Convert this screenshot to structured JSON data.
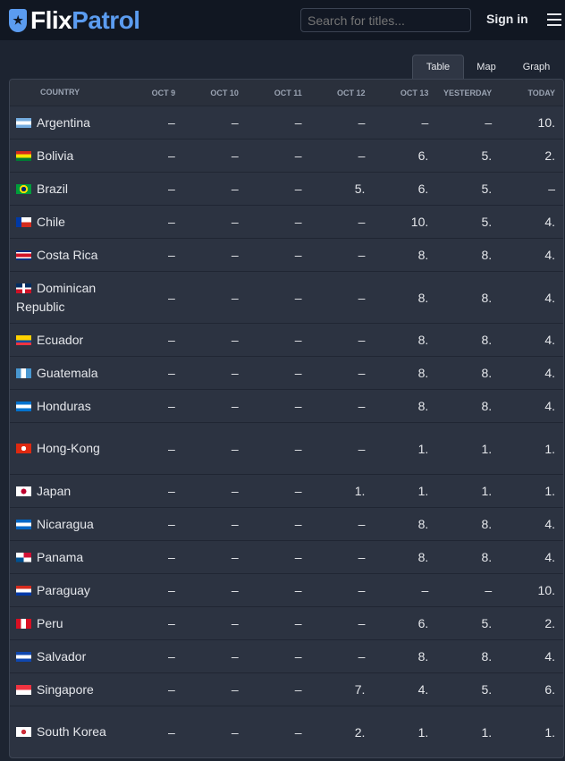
{
  "header": {
    "brand_a": "Flix",
    "brand_b": "Patrol",
    "search_placeholder": "Search for titles...",
    "signin": "Sign in"
  },
  "tabs": [
    "Table",
    "Map",
    "Graph"
  ],
  "columns": [
    "COUNTRY",
    "OCT 9",
    "OCT 10",
    "OCT 11",
    "OCT 12",
    "OCT 13",
    "YESTERDAY",
    "TODAY"
  ],
  "rows": [
    {
      "country": "Argentina",
      "flag": "linear-gradient(#74acdf 33%,#fff 33% 66%,#74acdf 66%)",
      "values": [
        "–",
        "–",
        "–",
        "–",
        "–",
        "–",
        "10."
      ]
    },
    {
      "country": "Bolivia",
      "flag": "linear-gradient(#d52b1e 33%,#f9e300 33% 66%,#007934 66%)",
      "values": [
        "–",
        "–",
        "–",
        "–",
        "6.",
        "5.",
        "2."
      ]
    },
    {
      "country": "Brazil",
      "flag": "radial-gradient(circle,#002776 25%,#fedf00 26% 45%,#009c3b 46%)",
      "values": [
        "–",
        "–",
        "–",
        "5.",
        "6.",
        "5.",
        "–"
      ]
    },
    {
      "country": "Chile",
      "flag": "linear-gradient(90deg,#0039a6 35%,transparent 35%),linear-gradient(#fff 50%,#d52b1e 50%)",
      "values": [
        "–",
        "–",
        "–",
        "–",
        "10.",
        "5.",
        "4."
      ]
    },
    {
      "country": "Costa Rica",
      "flag": "linear-gradient(#002b7f 18%,#fff 18% 33%,#ce1126 33% 66%,#fff 66% 82%,#002b7f 82%)",
      "values": [
        "–",
        "–",
        "–",
        "–",
        "8.",
        "8.",
        "4."
      ]
    },
    {
      "country": "Dominican Republic",
      "flag": "linear-gradient(90deg,transparent 42%,#fff 42% 58%,transparent 58%),linear-gradient(#002d62 42%,#fff 42% 58%,#ce1126 58%)",
      "values": [
        "–",
        "–",
        "–",
        "–",
        "8.",
        "8.",
        "4."
      ]
    },
    {
      "country": "Ecuador",
      "flag": "linear-gradient(#ffd100 50%,#034ea2 50% 75%,#ef3340 75%)",
      "values": [
        "–",
        "–",
        "–",
        "–",
        "8.",
        "8.",
        "4."
      ]
    },
    {
      "country": "Guatemala",
      "flag": "linear-gradient(90deg,#4997d0 33%,#fff 33% 66%,#4997d0 66%)",
      "values": [
        "–",
        "–",
        "–",
        "–",
        "8.",
        "8.",
        "4."
      ]
    },
    {
      "country": "Honduras",
      "flag": "linear-gradient(#0073cf 33%,#fff 33% 66%,#0073cf 66%)",
      "values": [
        "–",
        "–",
        "–",
        "–",
        "8.",
        "8.",
        "4."
      ]
    },
    {
      "country": "Hong-Kong",
      "flag": "radial-gradient(circle,#fff 25%,#de2910 27%)",
      "values": [
        "–",
        "–",
        "–",
        "–",
        "1.",
        "1.",
        "1."
      ]
    },
    {
      "country": "Japan",
      "flag": "radial-gradient(circle,#bc002d 28%,#fff 30%)",
      "values": [
        "–",
        "–",
        "–",
        "1.",
        "1.",
        "1.",
        "1."
      ]
    },
    {
      "country": "Nicaragua",
      "flag": "linear-gradient(#0067c6 33%,#fff 33% 66%,#0067c6 66%)",
      "values": [
        "–",
        "–",
        "–",
        "–",
        "8.",
        "8.",
        "4."
      ]
    },
    {
      "country": "Panama",
      "flag": "linear-gradient(90deg,#fff 50%,#d21034 50%) top/100% 50% no-repeat,linear-gradient(90deg,#005293 50%,#fff 50%) bottom/100% 50% no-repeat",
      "values": [
        "–",
        "–",
        "–",
        "–",
        "8.",
        "8.",
        "4."
      ]
    },
    {
      "country": "Paraguay",
      "flag": "linear-gradient(#d52b1e 33%,#fff 33% 66%,#0038a8 66%)",
      "values": [
        "–",
        "–",
        "–",
        "–",
        "–",
        "–",
        "10."
      ]
    },
    {
      "country": "Peru",
      "flag": "linear-gradient(90deg,#d91023 33%,#fff 33% 66%,#d91023 66%)",
      "values": [
        "–",
        "–",
        "–",
        "–",
        "6.",
        "5.",
        "2."
      ]
    },
    {
      "country": "Salvador",
      "flag": "linear-gradient(#0f47af 33%,#fff 33% 66%,#0f47af 66%)",
      "values": [
        "–",
        "–",
        "–",
        "–",
        "8.",
        "8.",
        "4."
      ]
    },
    {
      "country": "Singapore",
      "flag": "linear-gradient(#ef3340 50%,#fff 50%)",
      "values": [
        "–",
        "–",
        "–",
        "7.",
        "4.",
        "5.",
        "6."
      ]
    },
    {
      "country": "South Korea",
      "flag": "radial-gradient(circle,#cd2e3a 25%,#fff 28%)",
      "values": [
        "–",
        "–",
        "–",
        "2.",
        "1.",
        "1.",
        "1."
      ]
    }
  ]
}
